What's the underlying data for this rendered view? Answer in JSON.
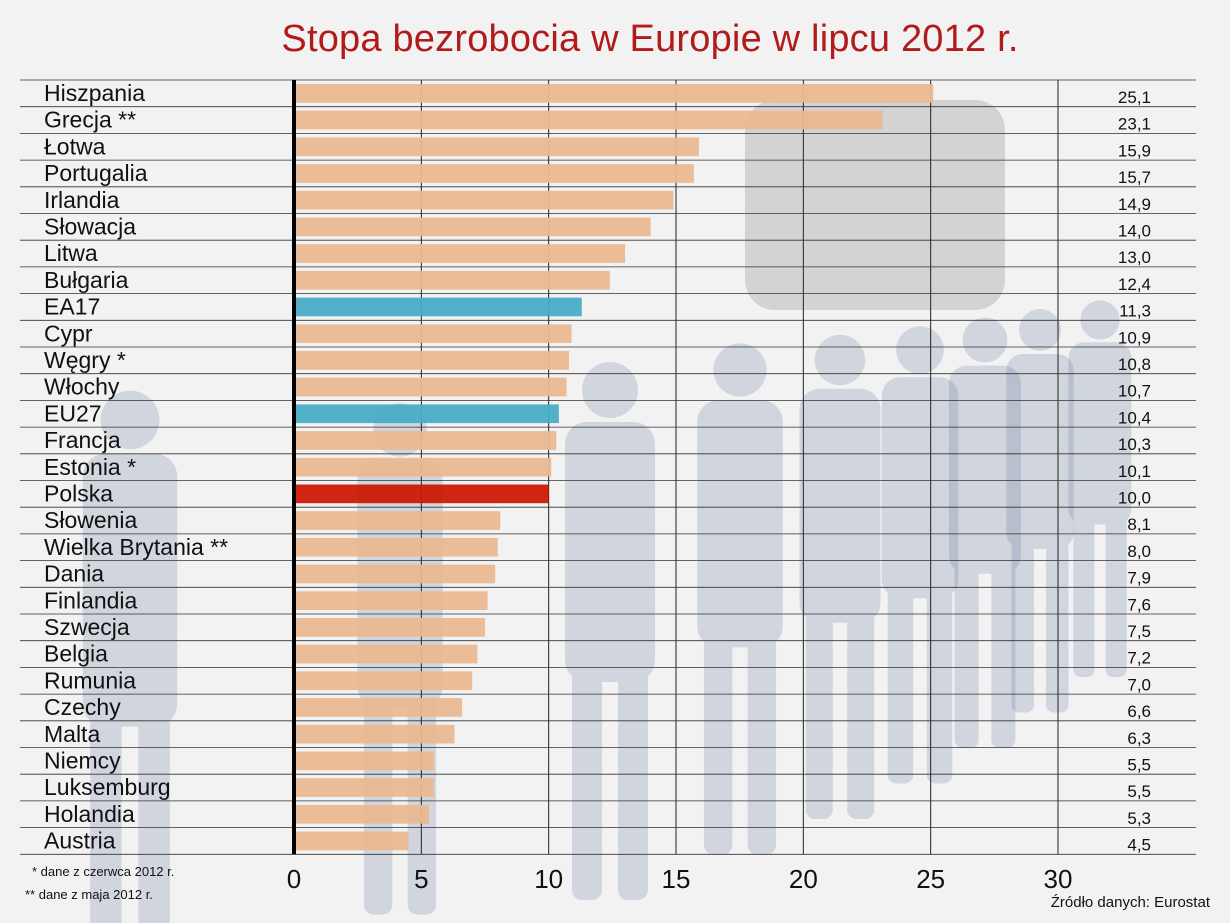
{
  "title": "Stopa bezrobocia w Europie w lipcu 2012 r.",
  "notes": {
    "june": "* dane z czerwca 2012 r.",
    "may": "** dane z maja 2012 r."
  },
  "source": "Źródło danych: Eurostat",
  "colors": {
    "default_bar": "#e9b891",
    "aggregate_bar": "#4aacc6",
    "highlight_bar": "#cc1a06",
    "title": "#b01c1c"
  },
  "chart_data": {
    "type": "bar",
    "orientation": "horizontal",
    "title": "Stopa bezrobocia w Europie w lipcu 2012 r.",
    "xlim": [
      0,
      30
    ],
    "xticks": [
      0,
      5,
      10,
      15,
      20,
      25,
      30
    ],
    "grid": "vertical",
    "categories": [
      "Hiszpania",
      "Grecja **",
      "Łotwa",
      "Portugalia",
      "Irlandia",
      "Słowacja",
      "Litwa",
      "Bułgaria",
      "EA17",
      "Cypr",
      "Węgry *",
      "Włochy",
      "EU27",
      "Francja",
      "Estonia *",
      "Polska",
      "Słowenia",
      "Wielka Brytania **",
      "Dania",
      "Finlandia",
      "Szwecja",
      "Belgia",
      "Rumunia",
      "Czechy",
      "Malta",
      "Niemcy",
      "Luksemburg",
      "Holandia",
      "Austria"
    ],
    "values": [
      25.1,
      23.1,
      15.9,
      15.7,
      14.9,
      14.0,
      13.0,
      12.4,
      11.3,
      10.9,
      10.8,
      10.7,
      10.4,
      10.3,
      10.1,
      10.0,
      8.1,
      8.0,
      7.9,
      7.6,
      7.5,
      7.2,
      7.0,
      6.6,
      6.3,
      5.5,
      5.5,
      5.3,
      4.5
    ],
    "value_labels": [
      "25,1",
      "23,1",
      "15,9",
      "15,7",
      "14,9",
      "14,0",
      "13,0",
      "12,4",
      "11,3",
      "10,9",
      "10,8",
      "10,7",
      "10,4",
      "10,3",
      "10,1",
      "10,0",
      "8,1",
      "8,0",
      "7,9",
      "7,6",
      "7,5",
      "7,2",
      "7,0",
      "6,6",
      "6,3",
      "5,5",
      "5,5",
      "5,3",
      "4,5"
    ],
    "bar_kinds": [
      "country",
      "country",
      "country",
      "country",
      "country",
      "country",
      "country",
      "country",
      "aggregate",
      "country",
      "country",
      "country",
      "aggregate",
      "country",
      "country",
      "highlight",
      "country",
      "country",
      "country",
      "country",
      "country",
      "country",
      "country",
      "country",
      "country",
      "country",
      "country",
      "country",
      "country"
    ]
  }
}
